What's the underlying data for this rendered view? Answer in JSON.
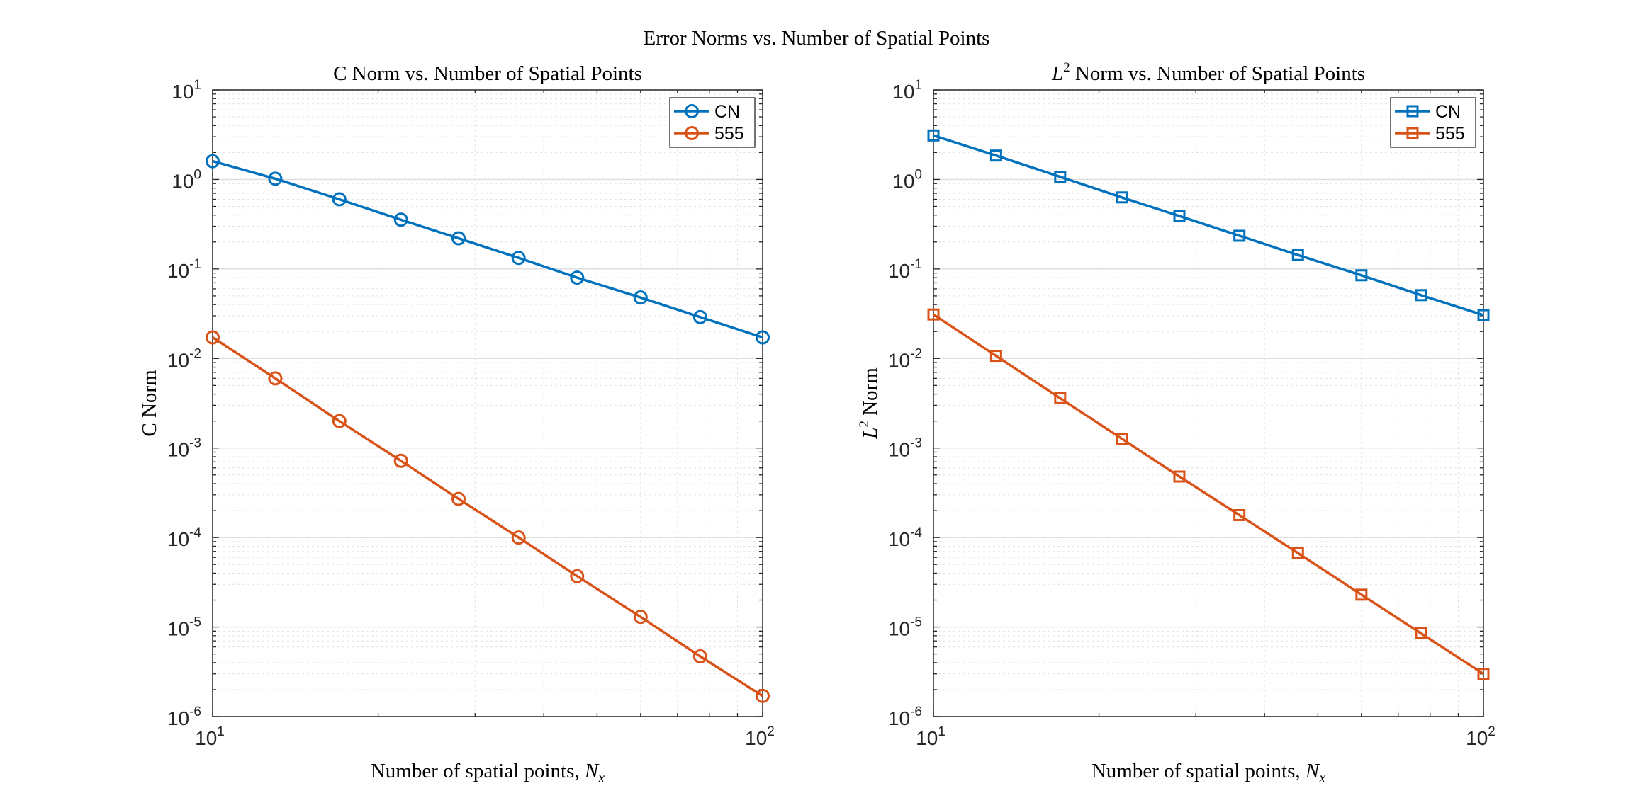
{
  "figure": {
    "suptitle": "Error Norms vs. Number of Spatial Points"
  },
  "colors": {
    "cn": "#0072BD",
    "s555": "#D95319",
    "axis": "#262626",
    "grid": "#dcdcdc"
  },
  "chart_data": [
    {
      "type": "line",
      "title": "C Norm vs. Number of Spatial Points",
      "title_prefix": "",
      "title_sup": "",
      "title_rest": "C Norm vs. Number of Spatial Points",
      "xlabel": "Number of spatial points, ",
      "xlabel_var": "N",
      "xlabel_sub": "x",
      "ylabel": "C Norm",
      "ylabel_prefix": "",
      "ylabel_sup": "",
      "ylabel_rest": "C Norm",
      "xscale": "log",
      "yscale": "log",
      "xlim": [
        10,
        100
      ],
      "ylim": [
        1e-06,
        10
      ],
      "xticks": [
        {
          "base": "10",
          "exp": "1",
          "v": 10
        },
        {
          "base": "10",
          "exp": "2",
          "v": 100
        }
      ],
      "yticks": [
        {
          "base": "10",
          "exp": "1",
          "v": 10
        },
        {
          "base": "10",
          "exp": "0",
          "v": 1
        },
        {
          "base": "10",
          "exp": "-1",
          "v": 0.1
        },
        {
          "base": "10",
          "exp": "-2",
          "v": 0.01
        },
        {
          "base": "10",
          "exp": "-3",
          "v": 0.001
        },
        {
          "base": "10",
          "exp": "-4",
          "v": 0.0001
        },
        {
          "base": "10",
          "exp": "-5",
          "v": 1e-05
        },
        {
          "base": "10",
          "exp": "-6",
          "v": 1e-06
        }
      ],
      "grid": true,
      "legend_position": "top-right",
      "marker": "circle",
      "x": [
        10,
        13,
        17,
        22,
        28,
        36,
        46,
        60,
        77,
        100
      ],
      "series": [
        {
          "name": "CN",
          "color_key": "cn",
          "values": [
            1.6,
            1.02,
            0.6,
            0.355,
            0.22,
            0.133,
            0.08,
            0.048,
            0.029,
            0.0172
          ]
        },
        {
          "name": "555",
          "color_key": "s555",
          "values": [
            0.0172,
            0.006,
            0.002,
            0.00072,
            0.00027,
            0.0001,
            3.7e-05,
            1.3e-05,
            4.7e-06,
            1.7e-06
          ]
        }
      ]
    },
    {
      "type": "line",
      "title": "L2 Norm vs. Number of Spatial Points",
      "title_prefix": "L",
      "title_sup": "2",
      "title_rest": " Norm vs. Number of Spatial Points",
      "xlabel": "Number of spatial points, ",
      "xlabel_var": "N",
      "xlabel_sub": "x",
      "ylabel": "L2 Norm",
      "ylabel_prefix": "L",
      "ylabel_sup": "2",
      "ylabel_rest": " Norm",
      "xscale": "log",
      "yscale": "log",
      "xlim": [
        10,
        100
      ],
      "ylim": [
        1e-06,
        10
      ],
      "xticks": [
        {
          "base": "10",
          "exp": "1",
          "v": 10
        },
        {
          "base": "10",
          "exp": "2",
          "v": 100
        }
      ],
      "yticks": [
        {
          "base": "10",
          "exp": "1",
          "v": 10
        },
        {
          "base": "10",
          "exp": "0",
          "v": 1
        },
        {
          "base": "10",
          "exp": "-1",
          "v": 0.1
        },
        {
          "base": "10",
          "exp": "-2",
          "v": 0.01
        },
        {
          "base": "10",
          "exp": "-3",
          "v": 0.001
        },
        {
          "base": "10",
          "exp": "-4",
          "v": 0.0001
        },
        {
          "base": "10",
          "exp": "-5",
          "v": 1e-05
        },
        {
          "base": "10",
          "exp": "-6",
          "v": 1e-06
        }
      ],
      "grid": true,
      "legend_position": "top-right",
      "marker": "square",
      "x": [
        10,
        13,
        17,
        22,
        28,
        36,
        46,
        60,
        77,
        100
      ],
      "series": [
        {
          "name": "CN",
          "color_key": "cn",
          "values": [
            3.1,
            1.85,
            1.07,
            0.63,
            0.39,
            0.235,
            0.143,
            0.085,
            0.051,
            0.0305
          ]
        },
        {
          "name": "555",
          "color_key": "s555",
          "values": [
            0.031,
            0.0107,
            0.0036,
            0.00127,
            0.00048,
            0.000178,
            6.7e-05,
            2.3e-05,
            8.5e-06,
            3e-06
          ]
        }
      ]
    }
  ]
}
